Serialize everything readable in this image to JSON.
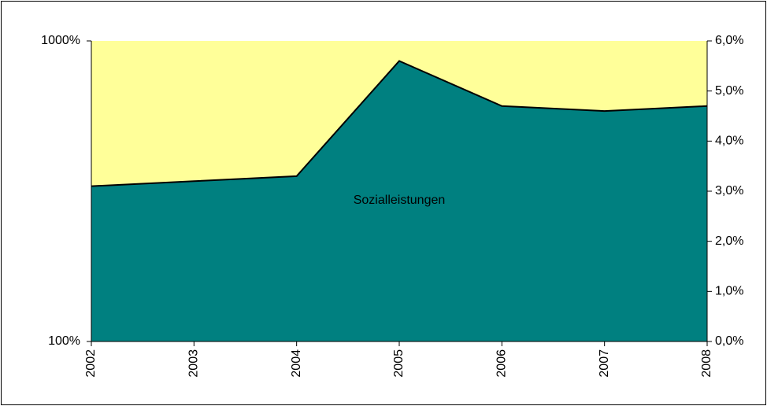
{
  "chart_data": {
    "type": "area",
    "categories": [
      "2002",
      "2003",
      "2004",
      "2005",
      "2006",
      "2007",
      "2008"
    ],
    "series": [
      {
        "name": "Sozialleistungen",
        "color": "#008080",
        "axis": "y2",
        "values": [
          3.1,
          3.2,
          3.3,
          5.6,
          4.7,
          4.6,
          4.7
        ]
      }
    ],
    "ylim": [
      100,
      1000
    ],
    "yticks": [
      {
        "value": 100,
        "label": "100%"
      },
      {
        "value": 1000,
        "label": "1000%"
      }
    ],
    "y_log": true,
    "y2lim": [
      0,
      6
    ],
    "y2ticks": [
      {
        "value": 0,
        "label": "0,0%"
      },
      {
        "value": 1,
        "label": "1,0%"
      },
      {
        "value": 2,
        "label": "2,0%"
      },
      {
        "value": 3,
        "label": "3,0%"
      },
      {
        "value": 4,
        "label": "4,0%"
      },
      {
        "value": 5,
        "label": "5,0%"
      },
      {
        "value": 6,
        "label": "6,0%"
      }
    ],
    "plot_background": "#FFFF99",
    "grid": false
  }
}
